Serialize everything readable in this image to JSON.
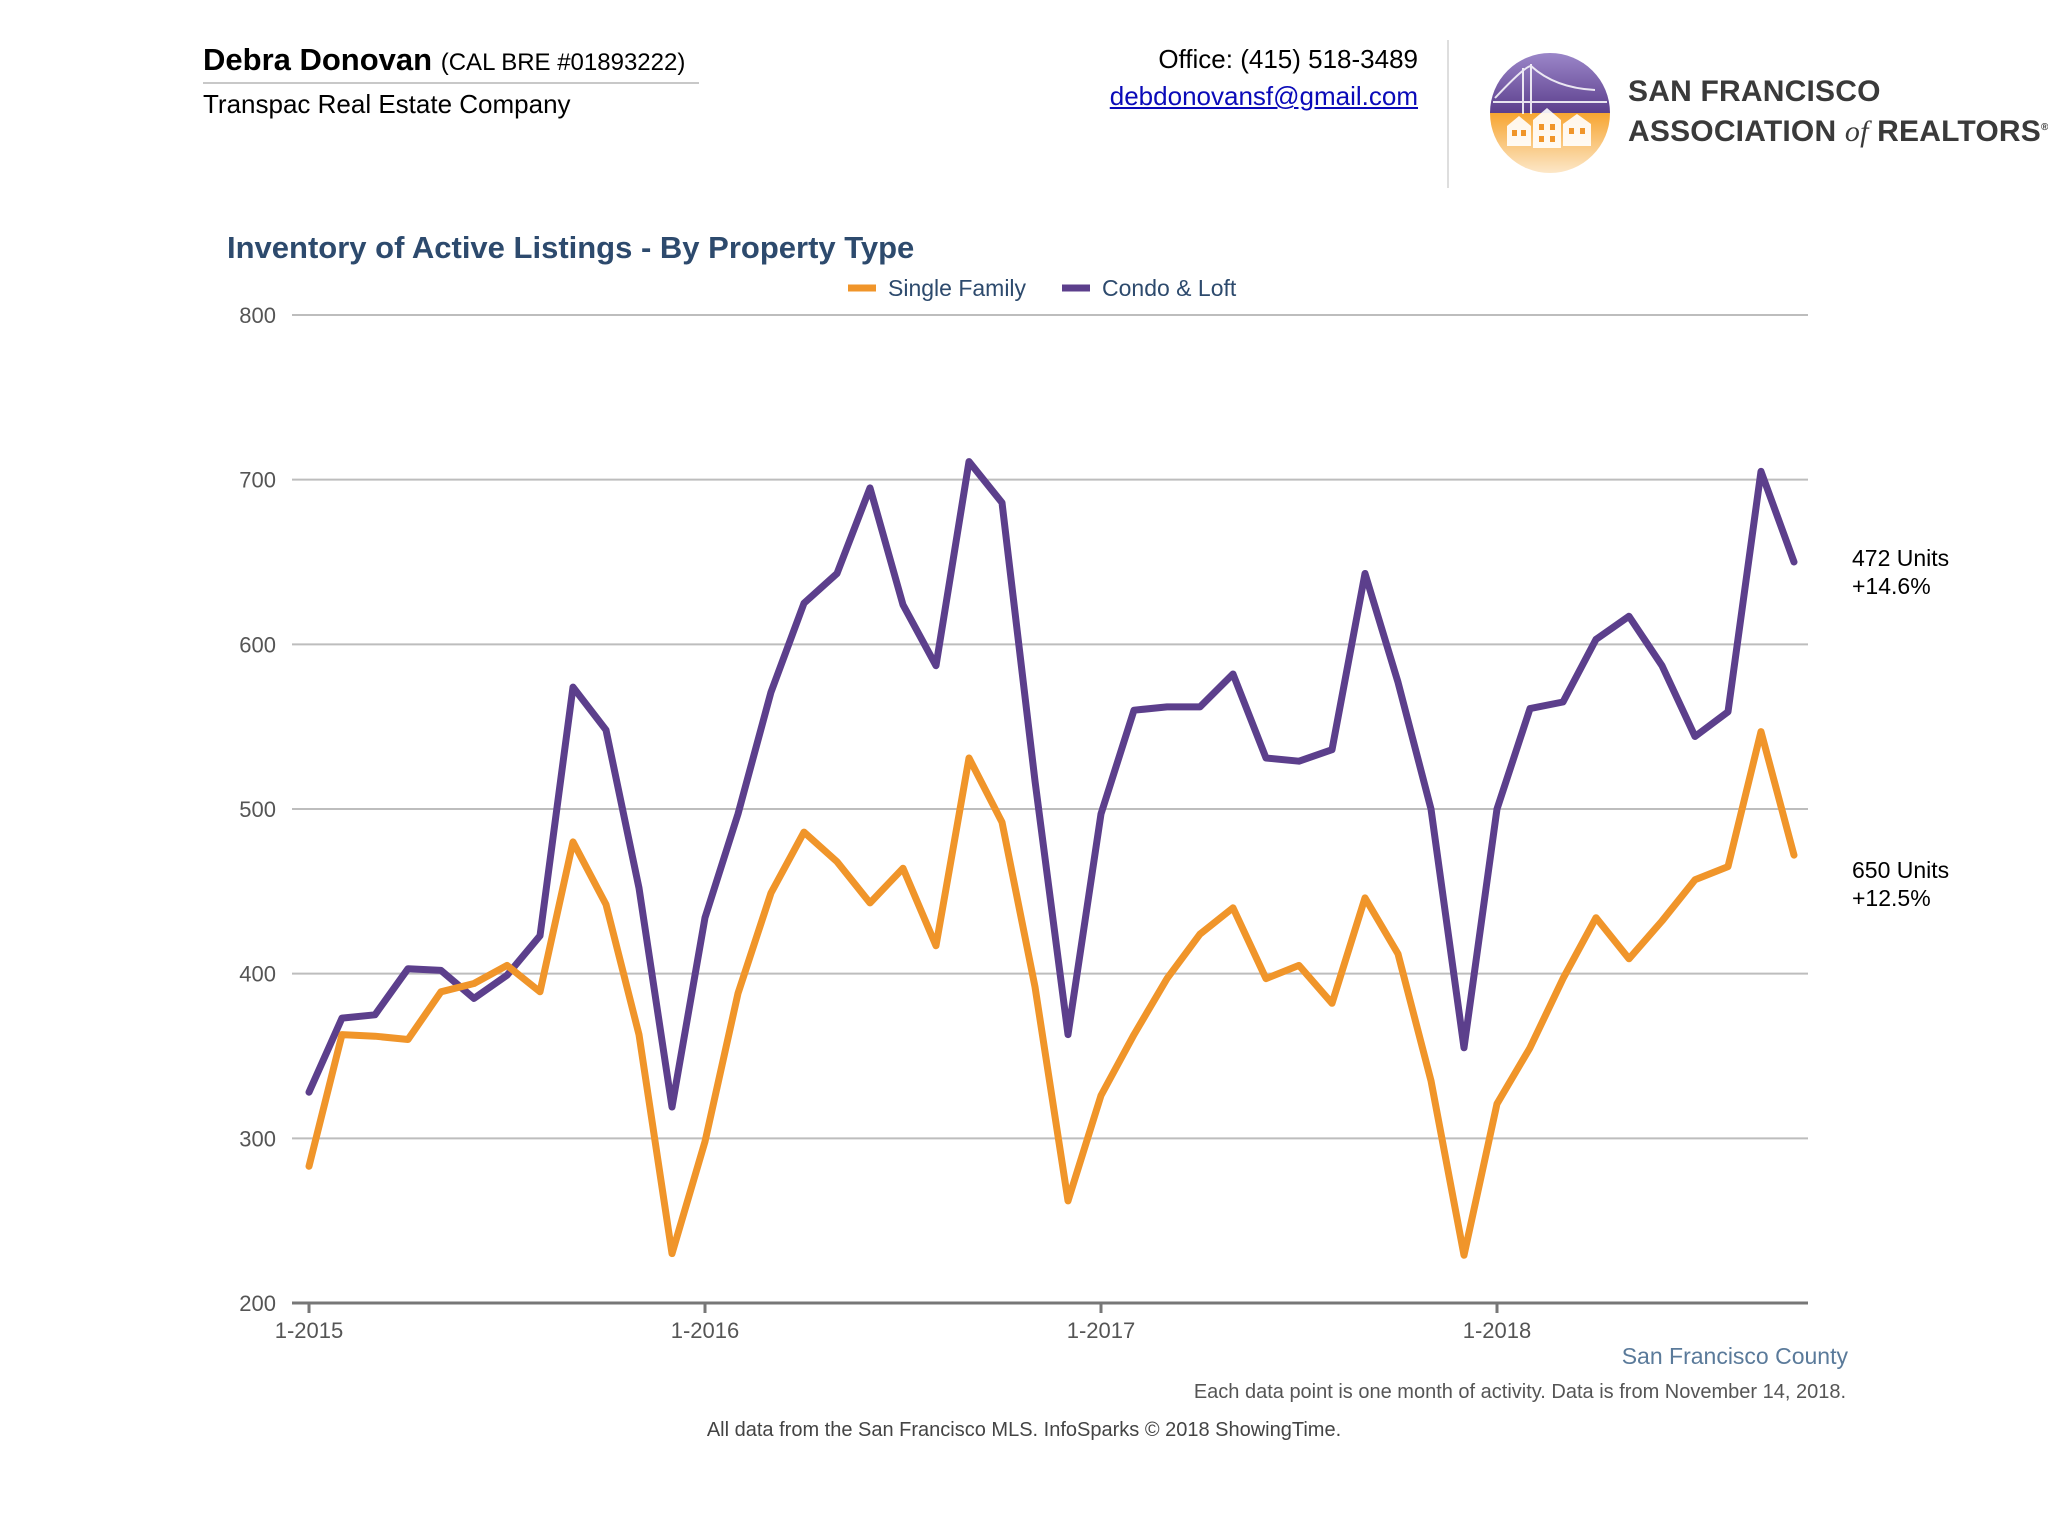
{
  "header": {
    "agent_name": "Debra Donovan",
    "agent_license": "(CAL BRE #01893222)",
    "company": "Transpac Real Estate Company",
    "office": "Office: (415) 518-3489",
    "email": "debdonovansf@gmail.com",
    "association_line1": "SAN FRANCISCO",
    "association_line2_pre": "ASSOCIATION",
    "association_line2_of": "of",
    "association_line2_post": "REALTORS",
    "association_mark": "®",
    "logo_icon": "golden-gate-houses-logo"
  },
  "chart_data": {
    "type": "line",
    "title": "Inventory of Active Listings - By Property Type",
    "xlabel": "",
    "ylabel": "",
    "ylim": [
      200,
      800
    ],
    "yticks": [
      200,
      300,
      400,
      500,
      600,
      700,
      800
    ],
    "x_tick_labels": [
      "1-2015",
      "1-2016",
      "1-2017",
      "1-2018"
    ],
    "grid": true,
    "legend_position": "top-center",
    "x": [
      "1-2015",
      "2-2015",
      "3-2015",
      "4-2015",
      "5-2015",
      "6-2015",
      "7-2015",
      "8-2015",
      "9-2015",
      "10-2015",
      "11-2015",
      "12-2015",
      "1-2016",
      "2-2016",
      "3-2016",
      "4-2016",
      "5-2016",
      "6-2016",
      "7-2016",
      "8-2016",
      "9-2016",
      "10-2016",
      "11-2016",
      "12-2016",
      "1-2017",
      "2-2017",
      "3-2017",
      "4-2017",
      "5-2017",
      "6-2017",
      "7-2017",
      "8-2017",
      "9-2017",
      "10-2017",
      "11-2017",
      "12-2017",
      "1-2018",
      "2-2018",
      "3-2018",
      "4-2018",
      "5-2018",
      "6-2018",
      "7-2018",
      "8-2018",
      "9-2018",
      "10-2018"
    ],
    "series": [
      {
        "name": "Single Family",
        "color": "#f0952a",
        "values": [
          283,
          363,
          362,
          360,
          389,
          394,
          405,
          389,
          480,
          442,
          363,
          230,
          298,
          388,
          449,
          486,
          468,
          443,
          464,
          417,
          531,
          492,
          392,
          262,
          326,
          363,
          397,
          424,
          440,
          397,
          405,
          382,
          446,
          412,
          335,
          229,
          321,
          355,
          397,
          434,
          409,
          432,
          457,
          465,
          547,
          472
        ],
        "end_label": "472 Units",
        "end_change": "+14.6%"
      },
      {
        "name": "Condo & Loft",
        "color": "#5c3f8c",
        "values": [
          328,
          373,
          375,
          403,
          402,
          385,
          399,
          423,
          574,
          548,
          452,
          319,
          434,
          497,
          571,
          625,
          643,
          695,
          624,
          587,
          711,
          686,
          517,
          363,
          497,
          560,
          562,
          562,
          582,
          531,
          529,
          536,
          643,
          577,
          500,
          355,
          500,
          561,
          565,
          603,
          617,
          587,
          544,
          559,
          705,
          650
        ],
        "end_label": "650 Units",
        "end_change": "+12.5%"
      }
    ]
  },
  "footer": {
    "county": "San Francisco County",
    "note": "Each data point is one month of activity. Data is from November 14, 2018.",
    "source": "All data from the San Francisco MLS. InfoSparks © 2018 ShowingTime."
  }
}
